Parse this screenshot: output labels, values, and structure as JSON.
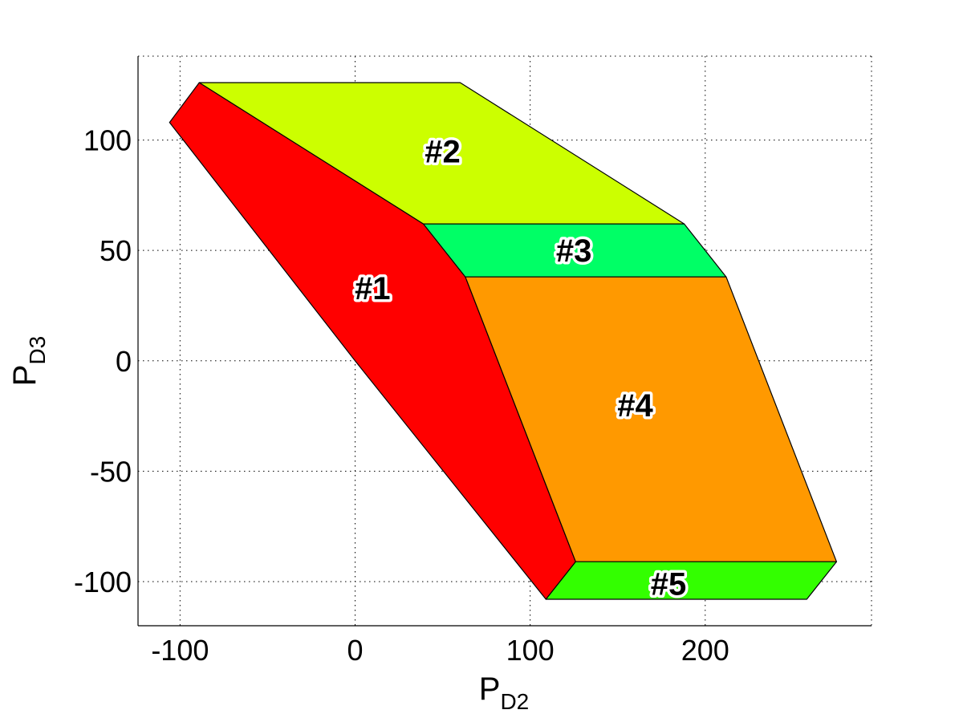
{
  "chart_data": {
    "type": "area",
    "xlabel": {
      "main": "P",
      "sub": "D2"
    },
    "ylabel": {
      "main": "P",
      "sub": "D3"
    },
    "xlim": [
      -124,
      295
    ],
    "ylim": [
      -120,
      138
    ],
    "xticks": [
      -100,
      0,
      100,
      200
    ],
    "yticks": [
      -100,
      -50,
      0,
      50,
      100
    ],
    "xtick_labels": [
      "-100",
      "0",
      "100",
      "200"
    ],
    "ytick_labels": [
      "-100",
      "-50",
      "0",
      "50",
      "100"
    ],
    "grid": true,
    "box": "left-bottom",
    "regions": [
      {
        "label": "#1",
        "color": "#ff0000",
        "vertices": [
          [
            -106,
            108
          ],
          [
            -89,
            126
          ],
          [
            39,
            62
          ],
          [
            63,
            38
          ],
          [
            126,
            -91
          ],
          [
            109,
            -108
          ],
          [
            0,
            0
          ]
        ],
        "label_pos": [
          10,
          33
        ]
      },
      {
        "label": "#2",
        "color": "#ccff00",
        "vertices": [
          [
            -89,
            126
          ],
          [
            60,
            126
          ],
          [
            188,
            62
          ],
          [
            39,
            62
          ]
        ],
        "label_pos": [
          50,
          95
        ]
      },
      {
        "label": "#3",
        "color": "#00ff66",
        "vertices": [
          [
            39,
            62
          ],
          [
            188,
            62
          ],
          [
            212,
            38
          ],
          [
            63,
            38
          ]
        ],
        "label_pos": [
          125,
          50
        ]
      },
      {
        "label": "#4",
        "color": "#ff9900",
        "vertices": [
          [
            63,
            38
          ],
          [
            212,
            38
          ],
          [
            275,
            -91
          ],
          [
            126,
            -91
          ]
        ],
        "label_pos": [
          160,
          -20
        ]
      },
      {
        "label": "#5",
        "color": "#33ff00",
        "vertices": [
          [
            126,
            -91
          ],
          [
            275,
            -91
          ],
          [
            258,
            -108
          ],
          [
            109,
            -108
          ]
        ],
        "label_pos": [
          179,
          -101
        ]
      }
    ]
  }
}
